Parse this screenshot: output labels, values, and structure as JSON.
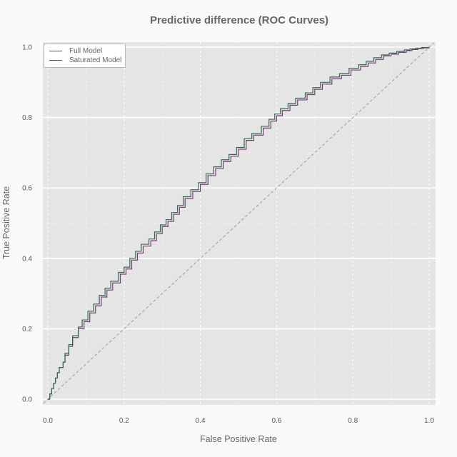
{
  "chart_data": {
    "type": "line",
    "title": "Predictive difference (ROC Curves)",
    "xlabel": "False Positive Rate",
    "ylabel": "True Positive Rate",
    "xlim": [
      0,
      1
    ],
    "ylim": [
      0,
      1
    ],
    "x_ticks": [
      "0.0",
      "0.2",
      "0.4",
      "0.6",
      "0.8",
      "1.0"
    ],
    "y_ticks": [
      "0.0",
      "0.2",
      "0.4",
      "0.6",
      "0.8",
      "1.0"
    ],
    "grid": true,
    "legend_position": "top-left",
    "diagonal_reference": true,
    "series": [
      {
        "name": "Full Model",
        "color": "#7a3a7a",
        "step": true,
        "x": [
          0,
          0.005,
          0.01,
          0.015,
          0.02,
          0.025,
          0.03,
          0.04,
          0.045,
          0.055,
          0.065,
          0.08,
          0.095,
          0.11,
          0.125,
          0.14,
          0.155,
          0.17,
          0.19,
          0.205,
          0.22,
          0.235,
          0.25,
          0.27,
          0.285,
          0.3,
          0.315,
          0.33,
          0.345,
          0.36,
          0.38,
          0.4,
          0.42,
          0.44,
          0.46,
          0.48,
          0.5,
          0.52,
          0.54,
          0.565,
          0.585,
          0.6,
          0.615,
          0.635,
          0.655,
          0.68,
          0.7,
          0.72,
          0.745,
          0.77,
          0.795,
          0.82,
          0.84,
          0.86,
          0.88,
          0.9,
          0.92,
          0.94,
          0.955,
          0.97,
          0.985,
          1.0
        ],
        "y": [
          0,
          0.015,
          0.03,
          0.045,
          0.06,
          0.075,
          0.09,
          0.105,
          0.125,
          0.15,
          0.175,
          0.2,
          0.22,
          0.245,
          0.265,
          0.29,
          0.31,
          0.33,
          0.355,
          0.37,
          0.395,
          0.415,
          0.435,
          0.45,
          0.47,
          0.49,
          0.505,
          0.525,
          0.545,
          0.57,
          0.59,
          0.61,
          0.635,
          0.655,
          0.675,
          0.69,
          0.71,
          0.735,
          0.75,
          0.77,
          0.79,
          0.805,
          0.82,
          0.835,
          0.85,
          0.865,
          0.88,
          0.895,
          0.91,
          0.92,
          0.935,
          0.945,
          0.955,
          0.965,
          0.975,
          0.98,
          0.985,
          0.99,
          0.993,
          0.996,
          0.998,
          1.0
        ]
      },
      {
        "name": "Saturated Model",
        "color": "#2e6b4c",
        "step": true,
        "x": [
          0,
          0.005,
          0.01,
          0.015,
          0.02,
          0.025,
          0.03,
          0.04,
          0.045,
          0.055,
          0.065,
          0.08,
          0.09,
          0.105,
          0.12,
          0.135,
          0.15,
          0.165,
          0.185,
          0.2,
          0.215,
          0.23,
          0.245,
          0.265,
          0.28,
          0.295,
          0.31,
          0.325,
          0.34,
          0.355,
          0.375,
          0.395,
          0.415,
          0.435,
          0.455,
          0.475,
          0.495,
          0.515,
          0.535,
          0.56,
          0.58,
          0.595,
          0.61,
          0.63,
          0.65,
          0.675,
          0.695,
          0.715,
          0.74,
          0.765,
          0.79,
          0.815,
          0.835,
          0.855,
          0.875,
          0.895,
          0.915,
          0.935,
          0.95,
          0.965,
          0.98,
          1.0
        ],
        "y": [
          0,
          0.015,
          0.03,
          0.045,
          0.06,
          0.075,
          0.09,
          0.105,
          0.13,
          0.155,
          0.18,
          0.205,
          0.225,
          0.25,
          0.27,
          0.295,
          0.315,
          0.335,
          0.36,
          0.375,
          0.4,
          0.42,
          0.44,
          0.455,
          0.475,
          0.495,
          0.51,
          0.53,
          0.55,
          0.575,
          0.595,
          0.615,
          0.64,
          0.66,
          0.68,
          0.695,
          0.715,
          0.74,
          0.755,
          0.775,
          0.795,
          0.81,
          0.825,
          0.84,
          0.855,
          0.87,
          0.885,
          0.9,
          0.915,
          0.925,
          0.94,
          0.95,
          0.96,
          0.97,
          0.978,
          0.983,
          0.988,
          0.992,
          0.995,
          0.997,
          0.999,
          1.0
        ]
      }
    ]
  }
}
